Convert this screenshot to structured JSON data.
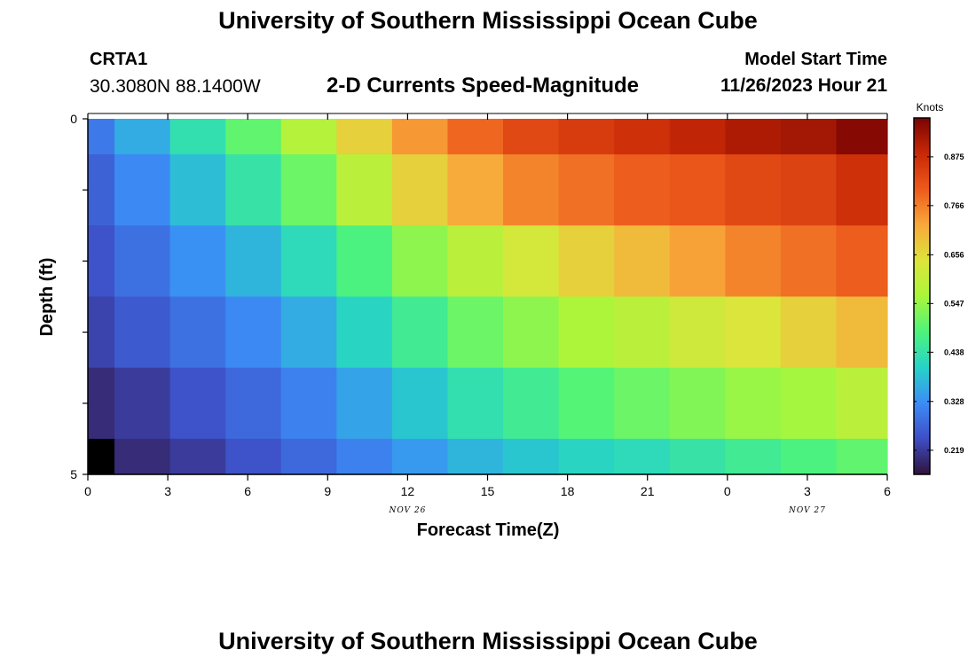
{
  "header": {
    "title": "University of Southern Mississippi Ocean Cube",
    "station_id": "CRTA1",
    "station_coords": "30.3080N  88.1400W",
    "subtitle": "2-D Currents Speed-Magnitude",
    "model_start_label": "Model Start Time",
    "model_start_value": "11/26/2023 Hour 21"
  },
  "footer": {
    "title": "University of Southern Mississippi Ocean Cube"
  },
  "chart_data": {
    "type": "heatmap",
    "title": "2-D Currents Speed-Magnitude",
    "xlabel": "Forecast Time(Z)",
    "ylabel": "Depth (ft)",
    "x_tick_labels": [
      "0",
      "3",
      "6",
      "9",
      "12",
      "15",
      "18",
      "21",
      "0",
      "3",
      "6"
    ],
    "x_date_labels": [
      {
        "label": "NOV 26",
        "at_tick": 4
      },
      {
        "label": "NOV 27",
        "at_tick": 9
      }
    ],
    "y_tick_labels": [
      "0",
      "5"
    ],
    "y_range": [
      0,
      5
    ],
    "x_range_hours": [
      0,
      36
    ],
    "column_edges_hours": [
      0,
      1.2,
      3.7,
      6.2,
      8.7,
      11.2,
      13.7,
      16.2,
      18.7,
      21.2,
      23.7,
      26.2,
      28.7,
      31.2,
      33.7,
      36
    ],
    "row_edges_ft": [
      0,
      0.5,
      1.5,
      2.5,
      3.5,
      4.5,
      5
    ],
    "values": [
      [
        0.3,
        0.36,
        0.43,
        0.5,
        0.58,
        0.67,
        0.74,
        0.79,
        0.83,
        0.85,
        0.87,
        0.89,
        0.91,
        0.92,
        0.95
      ],
      [
        0.27,
        0.32,
        0.38,
        0.44,
        0.51,
        0.59,
        0.67,
        0.72,
        0.76,
        0.78,
        0.8,
        0.81,
        0.83,
        0.84,
        0.87
      ],
      [
        0.25,
        0.29,
        0.33,
        0.37,
        0.42,
        0.48,
        0.54,
        0.59,
        0.63,
        0.67,
        0.7,
        0.73,
        0.76,
        0.78,
        0.8
      ],
      [
        0.23,
        0.26,
        0.29,
        0.32,
        0.36,
        0.41,
        0.46,
        0.51,
        0.54,
        0.57,
        0.59,
        0.62,
        0.64,
        0.67,
        0.7
      ],
      [
        0.2,
        0.22,
        0.25,
        0.28,
        0.31,
        0.35,
        0.39,
        0.43,
        0.46,
        0.49,
        0.51,
        0.53,
        0.55,
        0.56,
        0.59
      ],
      [
        0.1,
        0.2,
        0.22,
        0.25,
        0.28,
        0.31,
        0.34,
        0.37,
        0.39,
        0.41,
        0.42,
        0.44,
        0.46,
        0.48,
        0.5
      ]
    ],
    "colorbar": {
      "units": "Knots",
      "range": [
        0.165,
        0.962
      ],
      "tick_values": [
        0.219,
        0.328,
        0.438,
        0.547,
        0.656,
        0.766,
        0.875
      ],
      "tick_labels": [
        "0.219",
        "0.328",
        "0.438",
        "0.547",
        "0.656",
        "0.766",
        "0.875"
      ],
      "colormap_stops": [
        {
          "v": 0.0,
          "color": "#30123b"
        },
        {
          "v": 0.1,
          "color": "#3e4ec6"
        },
        {
          "v": 0.2,
          "color": "#3c8cf7"
        },
        {
          "v": 0.3,
          "color": "#26d3c8"
        },
        {
          "v": 0.4,
          "color": "#4df47c"
        },
        {
          "v": 0.5,
          "color": "#a9f63b"
        },
        {
          "v": 0.6,
          "color": "#dde43b"
        },
        {
          "v": 0.7,
          "color": "#f8a93a"
        },
        {
          "v": 0.8,
          "color": "#ed5a1c"
        },
        {
          "v": 0.9,
          "color": "#c82806"
        },
        {
          "v": 1.0,
          "color": "#7a0403"
        }
      ]
    }
  }
}
